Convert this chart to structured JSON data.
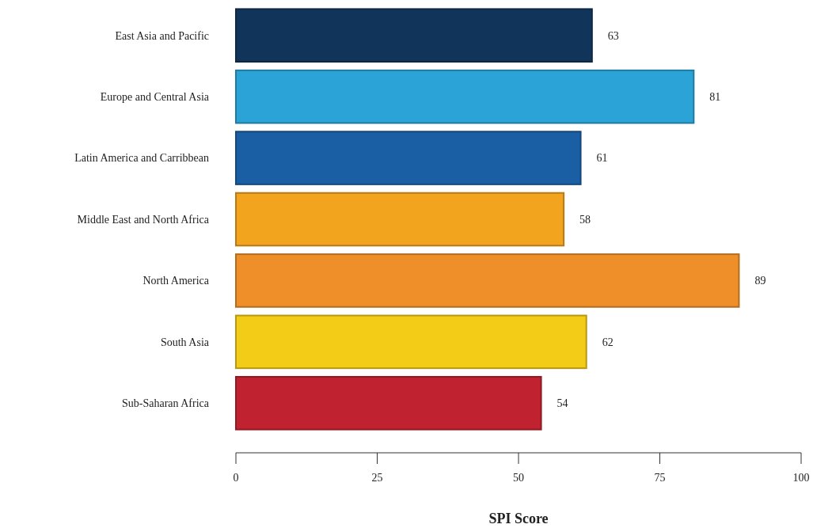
{
  "chart_data": {
    "type": "bar",
    "orientation": "horizontal",
    "xlabel": "SPI Score",
    "categories": [
      "East Asia and Pacific",
      "Europe and Central Asia",
      "Latin America and Carribbean",
      "Middle East and North Africa",
      "North America",
      "South Asia",
      "Sub-Saharan Africa"
    ],
    "values": [
      63,
      81,
      61,
      58,
      89,
      62,
      54
    ],
    "colors": [
      "#11345a",
      "#2ba3d6",
      "#1a5ea3",
      "#f2a41f",
      "#ef8f2a",
      "#f2cc17",
      "#c0222f"
    ],
    "xlim": [
      0,
      100
    ],
    "xticks": [
      0,
      25,
      50,
      75,
      100
    ],
    "data_labels": true
  }
}
